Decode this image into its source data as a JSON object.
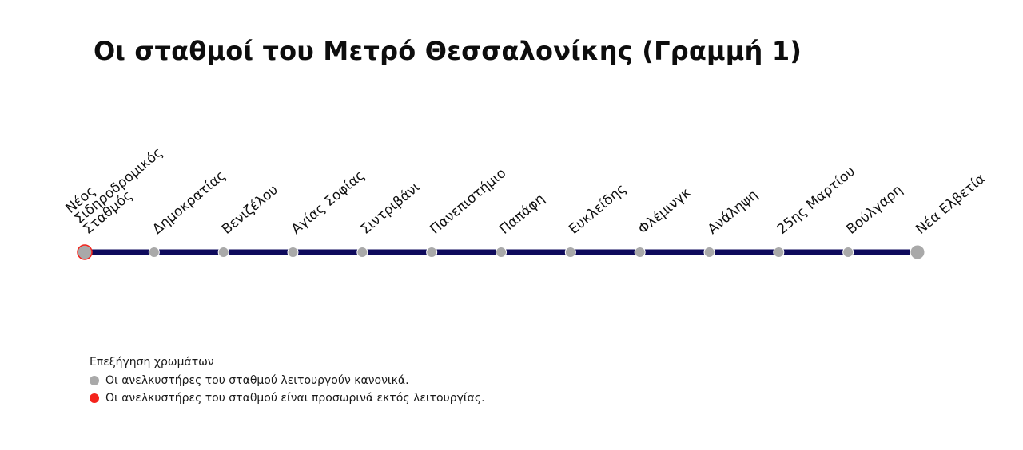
{
  "title": "Οι σταθμοί του Μετρό Θεσσαλονίκης (Γραμμή 1)",
  "colors": {
    "line": "#0e0a5c",
    "normal": "#a9a9a9",
    "out_of_service": "#f4231c",
    "text": "#111111"
  },
  "stations": [
    {
      "name": "Νέος Σιδηροδρομικός Σταθμός",
      "label_lines": [
        "Νέος",
        "Σιδηροδρομικός",
        "Σταθμός"
      ],
      "status": "out_of_service",
      "terminus": true
    },
    {
      "name": "Δημοκρατίας",
      "label_lines": [
        "Δημοκρατίας"
      ],
      "status": "normal",
      "terminus": false
    },
    {
      "name": "Βενιζέλου",
      "label_lines": [
        "Βενιζέλου"
      ],
      "status": "normal",
      "terminus": false
    },
    {
      "name": "Αγίας Σοφίας",
      "label_lines": [
        "Αγίας Σοφίας"
      ],
      "status": "normal",
      "terminus": false
    },
    {
      "name": "Σιντριβάνι",
      "label_lines": [
        "Σιντριβάνι"
      ],
      "status": "normal",
      "terminus": false
    },
    {
      "name": "Πανεπιστήμιο",
      "label_lines": [
        "Πανεπιστήμιο"
      ],
      "status": "normal",
      "terminus": false
    },
    {
      "name": "Παπάφη",
      "label_lines": [
        "Παπάφη"
      ],
      "status": "normal",
      "terminus": false
    },
    {
      "name": "Ευκλείδης",
      "label_lines": [
        "Ευκλείδης"
      ],
      "status": "normal",
      "terminus": false
    },
    {
      "name": "Φλέμινγκ",
      "label_lines": [
        "Φλέμινγκ"
      ],
      "status": "normal",
      "terminus": false
    },
    {
      "name": "Ανάληψη",
      "label_lines": [
        "Ανάληψη"
      ],
      "status": "normal",
      "terminus": false
    },
    {
      "name": "25ης Μαρτίου",
      "label_lines": [
        "25ης Μαρτίου"
      ],
      "status": "normal",
      "terminus": false
    },
    {
      "name": "Βούλγαρη",
      "label_lines": [
        "Βούλγαρη"
      ],
      "status": "normal",
      "terminus": false
    },
    {
      "name": "Νέα Ελβετία",
      "label_lines": [
        "Νέα Ελβετία"
      ],
      "status": "normal",
      "terminus": true
    }
  ],
  "legend": {
    "title": "Επεξήγηση χρωμάτων",
    "items": [
      {
        "status": "normal",
        "label": "Οι ανελκυστήρες του σταθμού λειτουργούν κανονικά."
      },
      {
        "status": "out_of_service",
        "label": "Οι ανελκυστήρες του σταθμού είναι προσωρινά εκτός λειτουργίας."
      }
    ]
  }
}
